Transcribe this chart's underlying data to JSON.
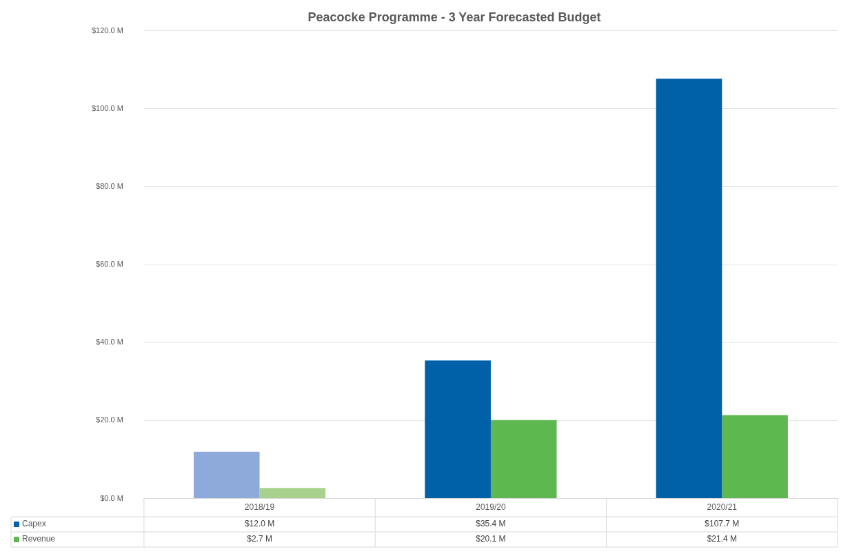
{
  "chart_data": {
    "type": "bar",
    "title": "Peacocke Programme - 3 Year Forecasted Budget",
    "categories": [
      "2018/19",
      "2019/20",
      "2020/21"
    ],
    "series": [
      {
        "name": "Capex",
        "color": "#0060a8",
        "colors": [
          "#8eaadb",
          "#0060a8",
          "#0060a8"
        ],
        "values": [
          12.0,
          35.4,
          107.7
        ],
        "value_labels": [
          "$12.0 M",
          "$35.4 M",
          "$107.7 M"
        ]
      },
      {
        "name": "Revenue",
        "color": "#5cb84f",
        "colors": [
          "#a9d18e",
          "#5cb84f",
          "#5cb84f"
        ],
        "values": [
          2.7,
          20.1,
          21.4
        ],
        "value_labels": [
          "$2.7 M",
          "$20.1 M",
          "$21.4 M"
        ]
      }
    ],
    "ylim": [
      0,
      120
    ],
    "yticks": [
      {
        "value": 0,
        "label": "$0.0 M"
      },
      {
        "value": 20,
        "label": "$20.0 M"
      },
      {
        "value": 40,
        "label": "$40.0 M"
      },
      {
        "value": 60,
        "label": "$60.0 M"
      },
      {
        "value": 80,
        "label": "$80.0 M"
      },
      {
        "value": 100,
        "label": "$100.0 M"
      },
      {
        "value": 120,
        "label": "$120.0 M"
      }
    ],
    "grid": "y",
    "legend": "bottom"
  }
}
